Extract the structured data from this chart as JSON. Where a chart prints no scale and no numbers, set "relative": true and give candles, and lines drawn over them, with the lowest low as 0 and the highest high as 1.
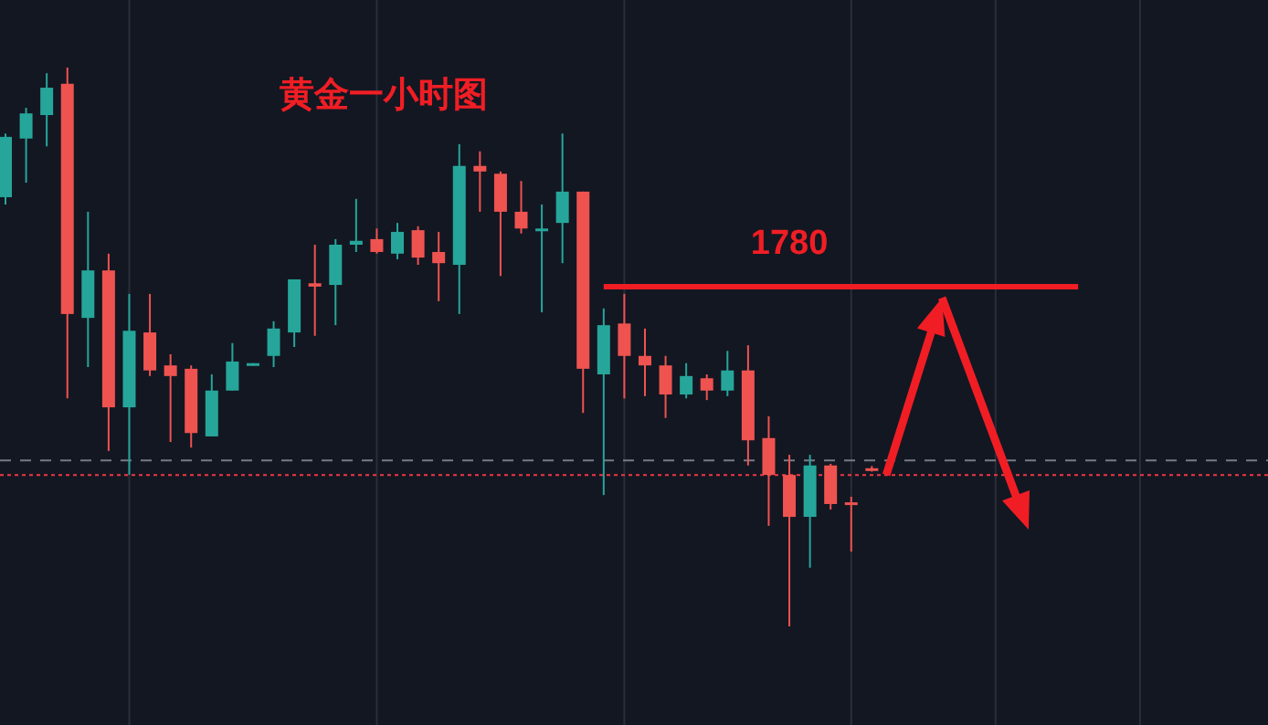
{
  "chart_data": {
    "type": "candlestick",
    "title": "黄金一小时图",
    "relative": true,
    "grid": "x",
    "tick_labels": false,
    "annotations": [
      "1780"
    ],
    "categories": [
      null,
      null,
      null,
      null,
      null,
      null,
      null,
      null,
      null,
      null,
      null,
      null,
      null,
      null,
      null,
      null,
      null,
      null,
      null,
      null,
      null,
      null,
      null,
      null,
      null,
      null,
      null,
      null,
      null,
      null,
      null,
      null,
      null,
      null,
      null,
      null,
      null,
      null,
      null,
      null,
      null,
      null,
      null,
      null,
      null,
      null,
      null,
      null,
      null,
      null,
      null,
      null,
      null,
      null,
      null,
      null,
      null,
      null,
      null,
      null,
      null,
      null
    ],
    "series": [
      {
        "ohlc": [
          [
            0.768,
            0.882,
            0.755,
            0.876
          ],
          [
            0.873,
            0.928,
            0.794,
            0.918
          ],
          [
            0.915,
            0.99,
            0.859,
            0.964
          ],
          [
            0.971,
            1,
            0.408,
            0.559
          ],
          [
            0.552,
            0.742,
            0.464,
            0.637
          ],
          [
            0.637,
            0.667,
            0.314,
            0.392
          ],
          [
            0.392,
            0.595,
            0.271,
            0.529
          ],
          [
            0.526,
            0.595,
            0.448,
            0.458
          ],
          [
            0.467,
            0.487,
            0.33,
            0.448
          ],
          [
            0.461,
            0.467,
            0.32,
            0.346
          ],
          [
            0.34,
            0.451,
            0.34,
            0.422
          ],
          [
            0.422,
            0.507,
            0.422,
            0.474
          ],
          [
            0.467,
            0.471,
            0.467,
            0.471
          ],
          [
            0.484,
            0.546,
            0.464,
            0.533
          ],
          [
            0.526,
            0.621,
            0.5,
            0.621
          ],
          [
            0.614,
            0.683,
            0.52,
            0.608
          ],
          [
            0.611,
            0.693,
            0.539,
            0.683
          ],
          [
            0.683,
            0.765,
            0.67,
            0.69
          ],
          [
            0.693,
            0.712,
            0.667,
            0.67
          ],
          [
            0.667,
            0.722,
            0.657,
            0.706
          ],
          [
            0.709,
            0.716,
            0.647,
            0.66
          ],
          [
            0.67,
            0.706,
            0.582,
            0.65
          ],
          [
            0.647,
            0.863,
            0.559,
            0.824
          ],
          [
            0.824,
            0.85,
            0.742,
            0.814
          ],
          [
            0.81,
            0.814,
            0.627,
            0.742
          ],
          [
            0.742,
            0.797,
            0.703,
            0.712
          ],
          [
            0.709,
            0.755,
            0.562,
            0.712
          ],
          [
            0.722,
            0.882,
            0.65,
            0.778
          ],
          [
            0.778,
            0.778,
            0.382,
            0.461
          ],
          [
            0.451,
            0.569,
            0.235,
            0.539
          ],
          [
            0.542,
            0.595,
            0.408,
            0.484
          ],
          [
            0.484,
            0.533,
            0.412,
            0.467
          ],
          [
            0.467,
            0.484,
            0.373,
            0.415
          ],
          [
            0.415,
            0.471,
            0.408,
            0.448
          ],
          [
            0.444,
            0.451,
            0.405,
            0.422
          ],
          [
            0.422,
            0.493,
            0.412,
            0.458
          ],
          [
            0.458,
            0.503,
            0.288,
            0.333
          ],
          [
            0.337,
            0.376,
            0.18,
            0.271
          ],
          [
            0.271,
            0.307,
            0,
            0.196
          ],
          [
            0.196,
            0.307,
            0.105,
            0.288
          ],
          [
            0.288,
            0.291,
            0.209,
            0.219
          ],
          [
            0.222,
            0.232,
            0.134,
            0.219
          ],
          [
            0.283,
            0.287,
            0.277,
            0.279
          ],
          null,
          null,
          null,
          null,
          null,
          null,
          null,
          null,
          null,
          null,
          null,
          null,
          null,
          null,
          null,
          null,
          null,
          null,
          null
        ],
        "colors": [
          "#26a69a",
          "#26a69a",
          "#26a69a",
          "#ef5350",
          "#26a69a",
          "#ef5350",
          "#26a69a",
          "#ef5350",
          "#ef5350",
          "#ef5350",
          "#26a69a",
          "#26a69a",
          "#26a69a",
          "#26a69a",
          "#26a69a",
          "#ef5350",
          "#26a69a",
          "#26a69a",
          "#ef5350",
          "#26a69a",
          "#ef5350",
          "#ef5350",
          "#26a69a",
          "#ef5350",
          "#ef5350",
          "#ef5350",
          "#26a69a",
          "#26a69a",
          "#ef5350",
          "#26a69a",
          "#ef5350",
          "#ef5350",
          "#ef5350",
          "#26a69a",
          "#ef5350",
          "#26a69a",
          "#ef5350",
          "#ef5350",
          "#ef5350",
          "#26a69a",
          "#ef5350",
          "#ef5350",
          "#ef5350",
          null,
          null,
          null,
          null,
          null,
          null,
          null,
          null,
          null,
          null,
          null,
          null,
          null,
          null,
          null,
          null,
          null,
          null,
          null
        ]
      },
      {
        "type": "line",
        "color": "#f01e24",
        "values": [
          null,
          null,
          null,
          null,
          null,
          null,
          null,
          null,
          null,
          null,
          null,
          null,
          null,
          null,
          null,
          null,
          null,
          null,
          null,
          null,
          null,
          null,
          null,
          null,
          null,
          null,
          null,
          null,
          null,
          0.608,
          0.608,
          0.608,
          0.608,
          0.608,
          0.608,
          0.608,
          0.608,
          0.608,
          0.608,
          0.608,
          0.608,
          0.608,
          0.608,
          0.608,
          0.608,
          0.608,
          0.608,
          0.608,
          0.608,
          0.608,
          0.608,
          0.608,
          0.608,
          null,
          null,
          null,
          null,
          null,
          null,
          null,
          null,
          null
        ]
      }
    ],
    "ref_lines": [
      {
        "axis": "y",
        "value": 0.297,
        "color": "#787b86",
        "line_style": "dashed"
      },
      {
        "axis": "y",
        "value": 0.271,
        "color": "#f23645",
        "line_style": "dotted"
      }
    ]
  }
}
